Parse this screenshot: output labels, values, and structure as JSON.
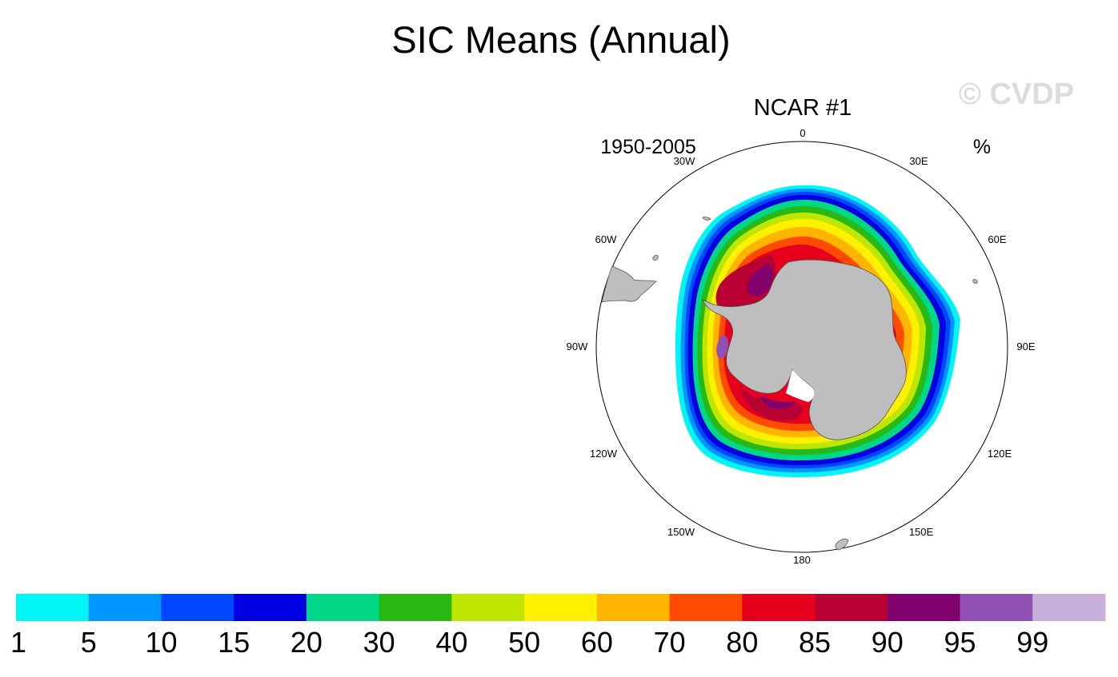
{
  "title": "SIC Means (Annual)",
  "watermark": "© CVDP",
  "panel": {
    "title": "NCAR #1",
    "period": "1950-2005",
    "units": "%",
    "lon_labels": [
      "0",
      "30E",
      "60E",
      "90E",
      "120E",
      "150E",
      "180",
      "150W",
      "120W",
      "90W",
      "60W",
      "30W"
    ]
  },
  "colorbar": {
    "colors": [
      "#00f5f5",
      "#0096ff",
      "#0046ff",
      "#0000e1",
      "#00d787",
      "#28b914",
      "#bee600",
      "#fff000",
      "#ffb400",
      "#ff4b00",
      "#e6001e",
      "#b90032",
      "#80006e",
      "#9150b4",
      "#c8afdc"
    ],
    "labels": [
      "1",
      "5",
      "10",
      "15",
      "20",
      "30",
      "40",
      "50",
      "60",
      "70",
      "80",
      "85",
      "90",
      "95",
      "99"
    ]
  },
  "colors": {
    "land": "#bebebe",
    "coast": "#555555",
    "watermark": "#dcdcdc"
  }
}
